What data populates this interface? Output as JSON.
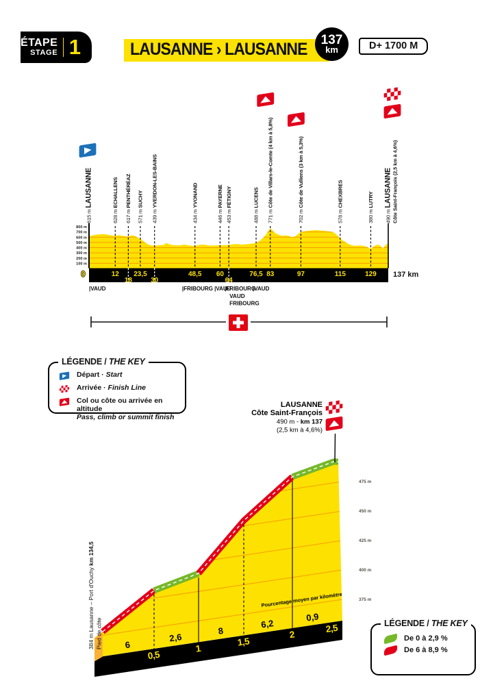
{
  "header": {
    "badge_title": "ÉTAPE",
    "badge_subtitle": "STAGE",
    "stage_number": "1",
    "title": "LAUSANNE › LAUSANNE",
    "distance_value": "137",
    "distance_unit": "km",
    "elevation_gain": "D+ 1700 M"
  },
  "legend_profile": {
    "title_fr": "LÉGENDE /",
    "title_en": "THE KEY",
    "items": [
      {
        "icon": "start-flag",
        "label_fr": "Départ ·",
        "label_en": "Start"
      },
      {
        "icon": "finish-flag",
        "label_fr": "Arrivée ·",
        "label_en": "Finish Line"
      },
      {
        "icon": "climb-flag",
        "label_fr": "Col ou côte ou arrivée en altitude",
        "label_en": "Pass, climb or summit finish"
      }
    ]
  },
  "legend_gradient": {
    "title_fr": "LÉGENDE /",
    "title_en": "THE KEY",
    "items": [
      {
        "color": "#76b82a",
        "label": "De 0 à 2,9 %"
      },
      {
        "color": "#e2001a",
        "label": "De 6 à 8,9 %"
      }
    ]
  },
  "colors": {
    "yellow": "#fde100",
    "orange": "#f59e00",
    "orange_deep": "#f9b233",
    "red": "#e2001a",
    "green": "#76b82a",
    "blue": "#1d71b8",
    "black": "#111111",
    "swiss_red": "#e30613"
  },
  "chart_data": [
    {
      "type": "area",
      "x_unit": "km",
      "y_unit": "m",
      "xlim": [
        0,
        137
      ],
      "ylim": [
        0,
        800
      ],
      "y_ticks": [
        "800 m",
        "700 m",
        "600 m",
        "500 m",
        "400 m",
        "300 m",
        "200 m",
        "100 m"
      ],
      "waypoints": [
        {
          "km": 0,
          "elev": 615,
          "label_elev": "615 m",
          "name": "LAUSANNE",
          "big": true,
          "flag": "start",
          "km_label": "0",
          "km_row": "outside-left"
        },
        {
          "km": 12,
          "elev": 628,
          "label_elev": "628 m",
          "name": "ECHALLENS",
          "km_label": "12",
          "km_row": 1
        },
        {
          "km": 18,
          "elev": 617,
          "label_elev": "617 m",
          "name": "PENTHÉRÉAZ",
          "km_label": "18",
          "km_row": 2
        },
        {
          "km": 23.5,
          "elev": 571,
          "label_elev": "571 m",
          "name": "SUCHY",
          "km_label": "23,5",
          "km_row": 1
        },
        {
          "km": 30,
          "elev": 439,
          "label_elev": "439 m",
          "name": "YVERDON-LES-BAINS",
          "km_label": "30",
          "km_row": 2
        },
        {
          "km": 48.5,
          "elev": 434,
          "label_elev": "434 m",
          "name": "YVONAND",
          "km_label": "48,5",
          "km_row": 1
        },
        {
          "km": 60,
          "elev": 446,
          "label_elev": "446 m",
          "name": "PAYERNE",
          "km_label": "60",
          "km_row": 1
        },
        {
          "km": 64,
          "elev": 453,
          "label_elev": "453 m",
          "name": "FÉTIGNY",
          "km_label": "64",
          "km_row": 2
        },
        {
          "km": 76.5,
          "elev": 488,
          "label_elev": "488 m",
          "name": "LUCENS",
          "km_label": "76,5",
          "km_row": 1
        },
        {
          "km": 83,
          "elev": 771,
          "label_elev": "771 m",
          "name": "Côte de Villars-le-Comte",
          "suffix": " (4 km à 5,8%)",
          "flag": "col",
          "km_label": "83",
          "km_row": 1
        },
        {
          "km": 97,
          "elev": 702,
          "label_elev": "702 m",
          "name": "Côte de Vulliens",
          "suffix": " (3 km à 5,3%)",
          "flag": "col",
          "km_label": "97",
          "km_row": 1
        },
        {
          "km": 115,
          "elev": 578,
          "label_elev": "578 m",
          "name": "CHEXBRES",
          "km_label": "115",
          "km_row": 1
        },
        {
          "km": 129,
          "elev": 380,
          "label_elev": "380 m",
          "name": "LUTRY",
          "km_label": "129",
          "km_row": 1
        },
        {
          "km": 137,
          "elev": 490,
          "label_elev": "490 m",
          "name": "LAUSANNE",
          "name2": "Côte Saint-François (2,5 km à 4,6%)",
          "big": true,
          "flag": "finish",
          "km_label": "137 km",
          "km_row": "outside-right"
        }
      ],
      "regions": [
        {
          "km": 0,
          "label": "VAUD"
        },
        {
          "km": 42.6,
          "label": "FRIBOURG"
        },
        {
          "km": 57.4,
          "label": "VAUD"
        },
        {
          "km": 62.1,
          "label": "FRIBOURG",
          "extra": [
            "VAUD",
            "FRIBOURG"
          ]
        },
        {
          "km": 74.9,
          "label": "VAUD"
        }
      ],
      "country_flag": "switzerland",
      "profile": [
        [
          0,
          615
        ],
        [
          2,
          640
        ],
        [
          5,
          658
        ],
        [
          7,
          660
        ],
        [
          9,
          645
        ],
        [
          11,
          630
        ],
        [
          12,
          628
        ],
        [
          13,
          636
        ],
        [
          14,
          638
        ],
        [
          15.5,
          625
        ],
        [
          17,
          615
        ],
        [
          18,
          617
        ],
        [
          19.5,
          638
        ],
        [
          21,
          625
        ],
        [
          22,
          600
        ],
        [
          23.5,
          571
        ],
        [
          25,
          520
        ],
        [
          27,
          460
        ],
        [
          28.5,
          443
        ],
        [
          30,
          439
        ],
        [
          32,
          446
        ],
        [
          34,
          452
        ],
        [
          35.5,
          488
        ],
        [
          36.5,
          470
        ],
        [
          38,
          452
        ],
        [
          40,
          446
        ],
        [
          42,
          444
        ],
        [
          43.5,
          460
        ],
        [
          45,
          448
        ],
        [
          46.5,
          440
        ],
        [
          48.5,
          434
        ],
        [
          50,
          448
        ],
        [
          52,
          460
        ],
        [
          53.5,
          452
        ],
        [
          55,
          444
        ],
        [
          56.5,
          440
        ],
        [
          58,
          442
        ],
        [
          60,
          446
        ],
        [
          61.5,
          450
        ],
        [
          63,
          448
        ],
        [
          64,
          453
        ],
        [
          65.5,
          462
        ],
        [
          67,
          470
        ],
        [
          68.5,
          466
        ],
        [
          70,
          458
        ],
        [
          71.5,
          464
        ],
        [
          73,
          470
        ],
        [
          74.5,
          478
        ],
        [
          76.5,
          488
        ],
        [
          78,
          525
        ],
        [
          79.5,
          580
        ],
        [
          81,
          650
        ],
        [
          82,
          720
        ],
        [
          83,
          771
        ],
        [
          83.8,
          745
        ],
        [
          84.5,
          705
        ],
        [
          85.5,
          672
        ],
        [
          86.5,
          655
        ],
        [
          87.5,
          638
        ],
        [
          88.5,
          626
        ],
        [
          90,
          636
        ],
        [
          91.5,
          625
        ],
        [
          93,
          602
        ],
        [
          94.5,
          618
        ],
        [
          95.5,
          655
        ],
        [
          97,
          702
        ],
        [
          98.5,
          712
        ],
        [
          100,
          722
        ],
        [
          102,
          730
        ],
        [
          104,
          735
        ],
        [
          105.5,
          730
        ],
        [
          107,
          724
        ],
        [
          108.5,
          718
        ],
        [
          110,
          710
        ],
        [
          111.5,
          702
        ],
        [
          113,
          665
        ],
        [
          114,
          620
        ],
        [
          115,
          578
        ],
        [
          116.5,
          528
        ],
        [
          118,
          488
        ],
        [
          119.5,
          455
        ],
        [
          121,
          440
        ],
        [
          122.5,
          438
        ],
        [
          124,
          442
        ],
        [
          125.5,
          438
        ],
        [
          127,
          420
        ],
        [
          128,
          398
        ],
        [
          129,
          380
        ],
        [
          130,
          412
        ],
        [
          131,
          442
        ],
        [
          132,
          456
        ],
        [
          133,
          448
        ],
        [
          134,
          410
        ],
        [
          134.5,
          384
        ],
        [
          135.5,
          440
        ],
        [
          137,
          490
        ]
      ]
    },
    {
      "type": "area",
      "y_unit": "m",
      "y_ticks": [
        "475 m",
        "450 m",
        "425 m",
        "400 m",
        "375 m"
      ],
      "summit": {
        "city": "LAUSANNE",
        "name": "Côte Saint-François",
        "elev_label": "490 m - ",
        "km_label": "km 137",
        "detail": "(2,5 km à 4,6%)"
      },
      "base_label": {
        "line1": "384 m Lausanne – Port d'Ouchy ",
        "km_bold": "km 134,5",
        "sub": "Pied de côte"
      },
      "axis_label": "Pourcentage moyen par kilomètre",
      "segments": [
        {
          "end_km_label": "0,5",
          "gradient_label": "6",
          "band": "red"
        },
        {
          "end_km_label": "1",
          "gradient_label": "2,6",
          "band": "green"
        },
        {
          "end_km_label": "1,5",
          "gradient_label": "8",
          "band": "red"
        },
        {
          "end_km_label": "2",
          "gradient_label": "6,2",
          "band": "red"
        },
        {
          "end_km_label": "2,5",
          "gradient_label": "0,9",
          "band": "green"
        }
      ]
    }
  ]
}
